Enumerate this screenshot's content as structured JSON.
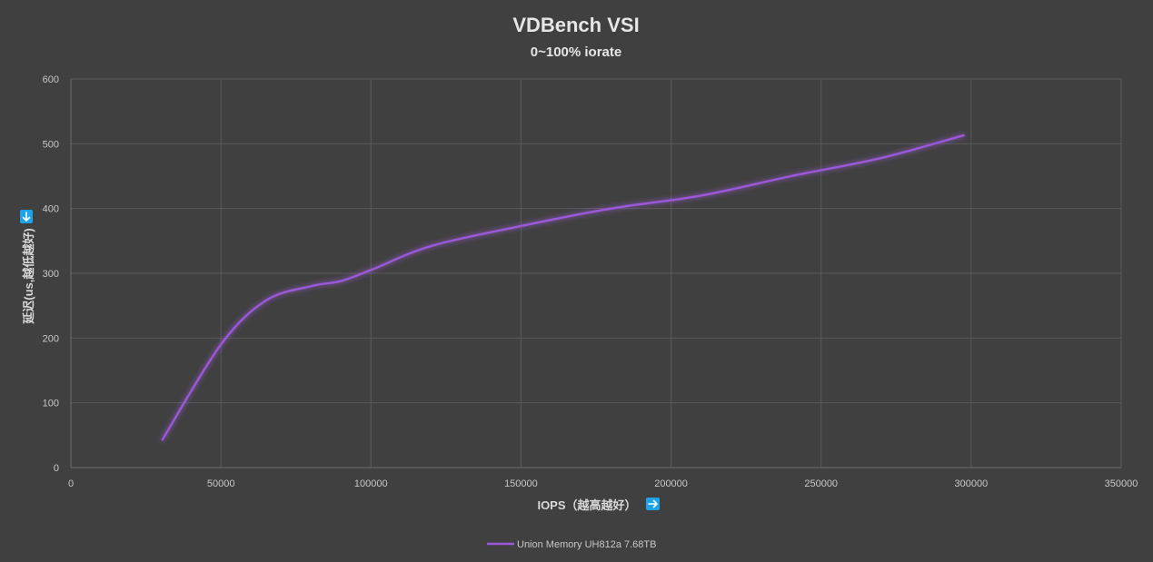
{
  "chart_data": {
    "type": "line",
    "title": "VDBench VSI",
    "subtitle": "0~100% iorate",
    "xlabel": "IOPS（越高越好）",
    "ylabel": "延迟(us,越低越好)",
    "xlim": [
      0,
      350000
    ],
    "ylim": [
      0,
      600
    ],
    "x_ticks": [
      0,
      50000,
      100000,
      150000,
      200000,
      250000,
      300000,
      350000
    ],
    "y_ticks": [
      0,
      100,
      200,
      300,
      400,
      500,
      600
    ],
    "x_tick_labels": [
      "0",
      "50000",
      "100000",
      "150000",
      "200000",
      "250000",
      "300000",
      "350000"
    ],
    "y_tick_labels": [
      "0",
      "100",
      "200",
      "300",
      "400",
      "500",
      "600"
    ],
    "grid": true,
    "legend_position": "bottom",
    "series": [
      {
        "name": "Union Memory UH812a 7.68TB",
        "color": "#9b59d8",
        "x": [
          30500,
          50000,
          65000,
          80000,
          90000,
          100000,
          120000,
          150000,
          180000,
          210000,
          240000,
          270000,
          297500
        ],
        "y": [
          43,
          190,
          258,
          280,
          288,
          305,
          342,
          373,
          400,
          420,
          450,
          478,
          513
        ]
      }
    ]
  },
  "icons": {
    "xlabel_arrow": "arrow-right-icon",
    "ylabel_arrow": "arrow-down-icon"
  }
}
